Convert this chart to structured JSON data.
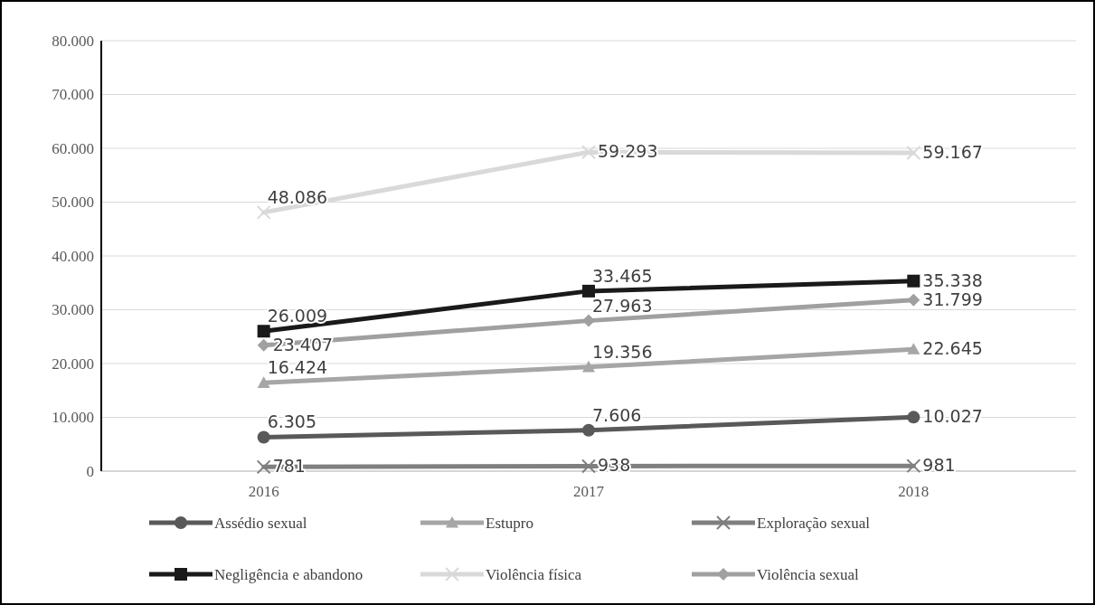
{
  "chart_data": {
    "type": "line",
    "categories": [
      "2016",
      "2017",
      "2018"
    ],
    "ylim": [
      0,
      80000
    ],
    "yticks": [
      {
        "value": 0,
        "label": "0"
      },
      {
        "value": 10000,
        "label": "10.000"
      },
      {
        "value": 20000,
        "label": "20.000"
      },
      {
        "value": 30000,
        "label": "30.000"
      },
      {
        "value": 40000,
        "label": "40.000"
      },
      {
        "value": 50000,
        "label": "50.000"
      },
      {
        "value": 60000,
        "label": "60.000"
      },
      {
        "value": 70000,
        "label": "70.000"
      },
      {
        "value": 80000,
        "label": "80.000"
      }
    ],
    "grid": "y",
    "legend": "bottom",
    "series": [
      {
        "name": "Assédio sexual",
        "color": "#595959",
        "marker": "circle",
        "values": [
          6305,
          7606,
          10027
        ],
        "value_labels": [
          "6.305",
          "7.606",
          "10.027"
        ]
      },
      {
        "name": "Estupro",
        "color": "#a6a6a6",
        "marker": "triangle",
        "values": [
          16424,
          19356,
          22645
        ],
        "value_labels": [
          "16.424",
          "19.356",
          "22.645"
        ]
      },
      {
        "name": "Exploração sexual",
        "color": "#7f7f7f",
        "marker": "cross",
        "values": [
          781,
          938,
          981
        ],
        "value_labels": [
          "781",
          "938",
          "981"
        ]
      },
      {
        "name": "Negligência e abandono",
        "color": "#1a1a1a",
        "marker": "square",
        "values": [
          26009,
          33465,
          35338
        ],
        "value_labels": [
          "26.009",
          "33.465",
          "35.338"
        ]
      },
      {
        "name": "Violência física",
        "color": "#d9d9d9",
        "marker": "cross",
        "values": [
          48086,
          59293,
          59167
        ],
        "value_labels": [
          "48.086",
          "59.293",
          "59.167"
        ]
      },
      {
        "name": "Violência sexual",
        "color": "#a0a0a0",
        "marker": "diamond",
        "values": [
          23407,
          27963,
          31799
        ],
        "value_labels": [
          "23.407",
          "27.963",
          "31.799"
        ]
      }
    ]
  }
}
